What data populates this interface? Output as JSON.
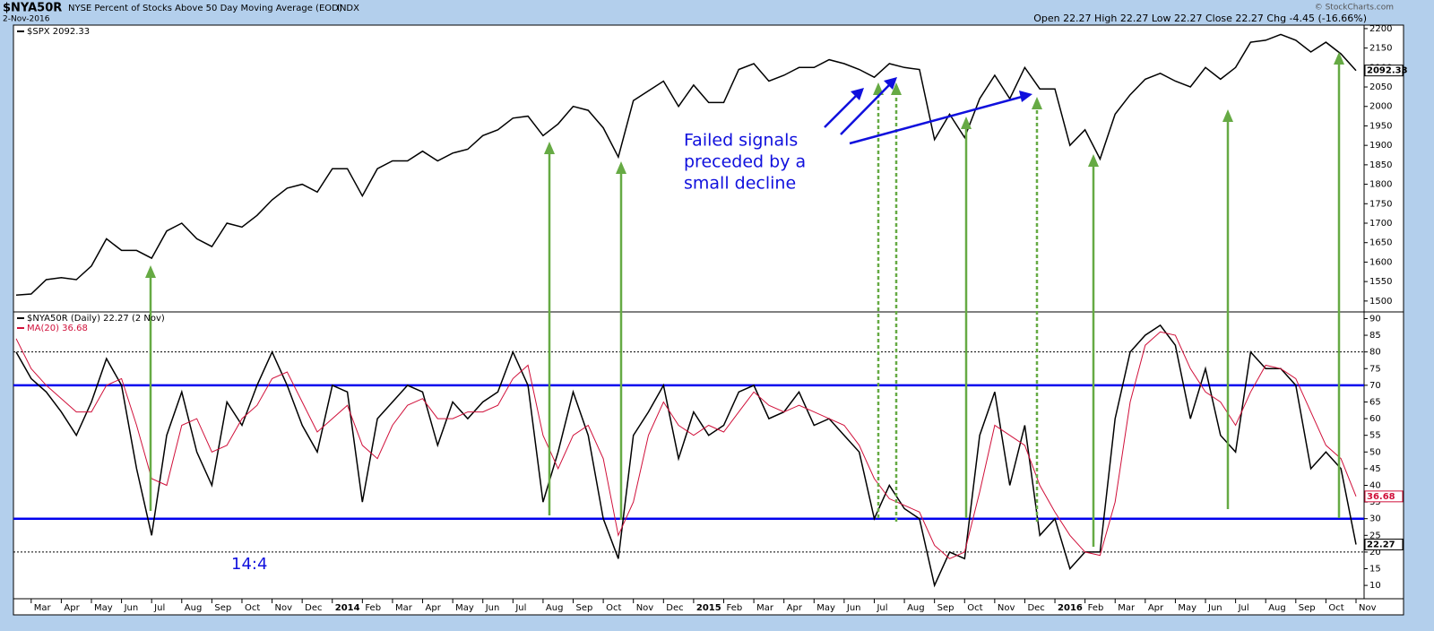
{
  "chart_data": [
    {
      "type": "line",
      "title": "$NYA50R",
      "subtitle": "NYSE Percent of Stocks Above 50 Day Moving Average (EOD)",
      "exchange": "INDX",
      "date": "2-Nov-2016",
      "ohlc": "Open 22.27  High 22.27  Low 22.27  Close 22.27  Chg -4.45 (-16.66%)",
      "credit": "© StockCharts.com",
      "annotations": [
        "Failed signals",
        "preceded by a",
        "small decline"
      ],
      "series": [
        {
          "name": "$SPX 2092.33",
          "color": "#000000",
          "last_label": "2092.33",
          "values": [
            1515,
            1518,
            1555,
            1560,
            1555,
            1590,
            1660,
            1630,
            1630,
            1610,
            1680,
            1700,
            1660,
            1640,
            1700,
            1690,
            1720,
            1760,
            1790,
            1800,
            1780,
            1840,
            1840,
            1770,
            1840,
            1860,
            1860,
            1885,
            1860,
            1880,
            1890,
            1925,
            1940,
            1970,
            1975,
            1925,
            1955,
            2000,
            1990,
            1945,
            1870,
            2015,
            2040,
            2065,
            2000,
            2055,
            2010,
            2010,
            2095,
            2110,
            2065,
            2080,
            2100,
            2100,
            2120,
            2110,
            2095,
            2075,
            2110,
            2100,
            2095,
            1915,
            1980,
            1920,
            2020,
            2080,
            2020,
            2100,
            2045,
            2045,
            1900,
            1940,
            1865,
            1980,
            2030,
            2070,
            2085,
            2065,
            2050,
            2100,
            2070,
            2100,
            2165,
            2170,
            2185,
            2170,
            2140,
            2165,
            2135,
            2092.33
          ]
        }
      ],
      "ylim": [
        1472,
        2209
      ],
      "yticks": [
        1500,
        1550,
        1600,
        1650,
        1700,
        1750,
        1800,
        1850,
        1900,
        1950,
        2000,
        2050,
        2100,
        2150,
        2200
      ]
    },
    {
      "type": "line",
      "annotations": [
        "14:4"
      ],
      "categories": [
        null,
        "Mar",
        null,
        "Apr",
        null,
        "May",
        null,
        "Jun",
        null,
        "Jul",
        null,
        "Aug",
        null,
        "Sep",
        null,
        "Oct",
        null,
        "Nov",
        null,
        "Dec",
        null,
        "2014",
        null,
        "Feb",
        null,
        "Mar",
        null,
        "Apr",
        null,
        "May",
        null,
        "Jun",
        null,
        "Jul",
        null,
        "Aug",
        null,
        "Sep",
        null,
        "Oct",
        null,
        "Nov",
        null,
        "Dec",
        null,
        "2015",
        null,
        "Feb",
        null,
        "Mar",
        null,
        "Apr",
        null,
        "May",
        null,
        "Jun",
        null,
        "Jul",
        null,
        "Aug",
        null,
        "Sep",
        null,
        "Oct",
        null,
        "Nov",
        null,
        "Dec",
        null,
        "2016",
        null,
        "Feb",
        null,
        "Mar",
        null,
        "Apr",
        null,
        "May",
        null,
        "Jun",
        null,
        "Jul",
        null,
        "Aug",
        null,
        "Sep",
        null,
        "Oct",
        null,
        "Nov"
      ],
      "series": [
        {
          "name": "$NYA50R (Daily) 22.27 (2 Nov)",
          "color": "#000000",
          "last_label": "22.27",
          "values": [
            80,
            72,
            68,
            62,
            55,
            65,
            78,
            70,
            45,
            25,
            55,
            68,
            50,
            40,
            65,
            58,
            70,
            80,
            70,
            58,
            50,
            70,
            68,
            35,
            60,
            65,
            70,
            68,
            52,
            65,
            60,
            65,
            68,
            80,
            70,
            35,
            50,
            68,
            55,
            30,
            18,
            55,
            62,
            70,
            48,
            62,
            55,
            58,
            68,
            70,
            60,
            62,
            68,
            58,
            60,
            55,
            50,
            30,
            40,
            33,
            30,
            10,
            20,
            18,
            55,
            68,
            40,
            58,
            25,
            30,
            15,
            20,
            20,
            60,
            80,
            85,
            88,
            82,
            60,
            75,
            55,
            50,
            80,
            75,
            75,
            70,
            45,
            50,
            45,
            22.27
          ]
        },
        {
          "name": "MA(20) 36.68",
          "color": "#d0103a",
          "last_label": "36.68",
          "values": [
            84,
            75,
            70,
            66,
            62,
            62,
            70,
            72,
            58,
            42,
            40,
            58,
            60,
            50,
            52,
            60,
            64,
            72,
            74,
            65,
            56,
            60,
            64,
            52,
            48,
            58,
            64,
            66,
            60,
            60,
            62,
            62,
            64,
            72,
            76,
            55,
            45,
            55,
            58,
            48,
            25,
            35,
            55,
            65,
            58,
            55,
            58,
            56,
            62,
            68,
            64,
            62,
            64,
            62,
            60,
            58,
            52,
            42,
            36,
            34,
            32,
            22,
            18,
            20,
            38,
            58,
            55,
            52,
            40,
            32,
            25,
            20,
            19,
            35,
            65,
            82,
            86,
            85,
            75,
            68,
            65,
            58,
            68,
            76,
            75,
            72,
            62,
            52,
            48,
            36.68
          ]
        }
      ],
      "hlines": [
        {
          "value": 70,
          "color": "#0000ee",
          "style": "solid"
        },
        {
          "value": 30,
          "color": "#0000ee",
          "style": "solid"
        },
        {
          "value": 80,
          "color": "#000000",
          "style": "dotted"
        },
        {
          "value": 20,
          "color": "#000000",
          "style": "dotted"
        }
      ],
      "ylim": [
        6,
        92
      ],
      "yticks": [
        10,
        15,
        20,
        25,
        30,
        35,
        40,
        45,
        50,
        55,
        60,
        65,
        70,
        75,
        80,
        85,
        90
      ]
    }
  ]
}
